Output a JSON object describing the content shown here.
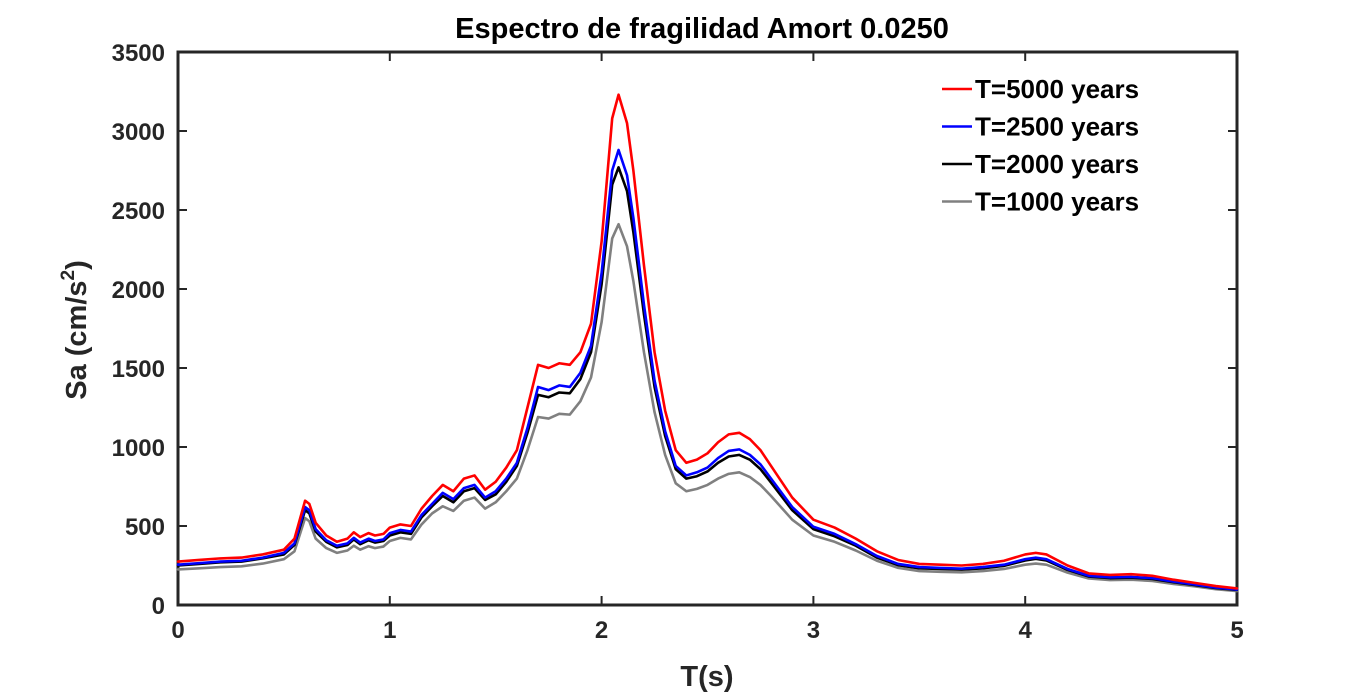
{
  "chart_data": {
    "type": "line",
    "title": "Espectro de fragilidad Amort 0.0250",
    "xlabel": "T(s)",
    "ylabel_main": "Sa (cm/s",
    "ylabel_sup": "2",
    "ylabel_close": ")",
    "xlim": [
      0,
      5
    ],
    "ylim": [
      0,
      3500
    ],
    "xticks": [
      0,
      1,
      2,
      3,
      4,
      5
    ],
    "xtick_labels": [
      "0",
      "1",
      "2",
      "3",
      "4",
      "5"
    ],
    "yticks": [
      0,
      500,
      1000,
      1500,
      2000,
      2500,
      3000,
      3500
    ],
    "ytick_labels": [
      "0",
      "500",
      "1000",
      "1500",
      "2000",
      "2500",
      "3000",
      "3500"
    ],
    "grid": false,
    "legend_position": "top-right",
    "x": [
      0,
      0.1,
      0.2,
      0.3,
      0.4,
      0.5,
      0.55,
      0.6,
      0.62,
      0.65,
      0.7,
      0.75,
      0.8,
      0.83,
      0.86,
      0.9,
      0.93,
      0.97,
      1.0,
      1.05,
      1.1,
      1.15,
      1.2,
      1.25,
      1.3,
      1.35,
      1.4,
      1.45,
      1.5,
      1.55,
      1.6,
      1.65,
      1.7,
      1.75,
      1.8,
      1.85,
      1.9,
      1.95,
      2.0,
      2.05,
      2.08,
      2.12,
      2.15,
      2.2,
      2.25,
      2.3,
      2.35,
      2.4,
      2.45,
      2.5,
      2.55,
      2.6,
      2.65,
      2.7,
      2.75,
      2.8,
      2.9,
      3.0,
      3.1,
      3.2,
      3.3,
      3.4,
      3.5,
      3.6,
      3.7,
      3.8,
      3.9,
      4.0,
      4.05,
      4.1,
      4.2,
      4.3,
      4.4,
      4.5,
      4.6,
      4.7,
      4.8,
      4.9,
      5.0
    ],
    "series": [
      {
        "name": "T=5000 years",
        "color": "#ff0000",
        "values": [
          275,
          285,
          295,
          300,
          320,
          350,
          420,
          660,
          640,
          520,
          440,
          400,
          420,
          460,
          430,
          455,
          440,
          450,
          490,
          510,
          500,
          610,
          690,
          760,
          720,
          800,
          820,
          730,
          780,
          870,
          980,
          1250,
          1520,
          1500,
          1530,
          1520,
          1600,
          1780,
          2300,
          3080,
          3230,
          3050,
          2750,
          2150,
          1600,
          1230,
          980,
          900,
          920,
          960,
          1030,
          1080,
          1090,
          1050,
          980,
          880,
          680,
          540,
          490,
          420,
          340,
          285,
          260,
          255,
          250,
          260,
          280,
          320,
          330,
          320,
          250,
          200,
          190,
          195,
          185,
          160,
          140,
          120,
          105
        ]
      },
      {
        "name": "T=2500 years",
        "color": "#0000ff",
        "values": [
          255,
          265,
          275,
          280,
          300,
          330,
          390,
          620,
          600,
          480,
          410,
          375,
          390,
          425,
          395,
          420,
          405,
          415,
          455,
          475,
          465,
          570,
          640,
          710,
          670,
          740,
          760,
          680,
          720,
          800,
          900,
          1120,
          1380,
          1360,
          1390,
          1380,
          1470,
          1640,
          2100,
          2750,
          2880,
          2720,
          2450,
          1900,
          1420,
          1100,
          880,
          820,
          840,
          870,
          930,
          975,
          985,
          950,
          890,
          800,
          620,
          495,
          450,
          385,
          310,
          260,
          240,
          235,
          230,
          240,
          255,
          290,
          300,
          290,
          228,
          185,
          175,
          178,
          170,
          148,
          130,
          110,
          98
        ]
      },
      {
        "name": "T=2000 years",
        "color": "#000000",
        "values": [
          250,
          260,
          270,
          275,
          295,
          320,
          380,
          600,
          580,
          465,
          400,
          365,
          380,
          415,
          385,
          410,
          395,
          405,
          440,
          460,
          450,
          555,
          625,
          690,
          650,
          720,
          740,
          665,
          700,
          780,
          880,
          1090,
          1330,
          1315,
          1345,
          1340,
          1430,
          1600,
          2030,
          2660,
          2770,
          2620,
          2360,
          1840,
          1380,
          1070,
          860,
          800,
          815,
          845,
          900,
          940,
          950,
          920,
          860,
          775,
          600,
          480,
          435,
          375,
          300,
          252,
          232,
          228,
          224,
          232,
          248,
          282,
          292,
          282,
          222,
          180,
          170,
          173,
          165,
          144,
          126,
          107,
          95
        ]
      },
      {
        "name": "T=1000 years",
        "color": "#808080",
        "values": [
          225,
          232,
          240,
          245,
          262,
          290,
          340,
          550,
          530,
          420,
          360,
          330,
          345,
          375,
          350,
          372,
          360,
          370,
          405,
          425,
          415,
          510,
          580,
          625,
          595,
          660,
          680,
          610,
          650,
          720,
          800,
          980,
          1190,
          1180,
          1210,
          1205,
          1290,
          1440,
          1790,
          2320,
          2410,
          2270,
          2050,
          1600,
          1220,
          950,
          770,
          720,
          735,
          760,
          800,
          830,
          840,
          810,
          760,
          690,
          540,
          440,
          400,
          345,
          280,
          235,
          215,
          210,
          207,
          215,
          228,
          255,
          262,
          255,
          205,
          168,
          158,
          160,
          152,
          133,
          118,
          100,
          88
        ]
      }
    ]
  }
}
